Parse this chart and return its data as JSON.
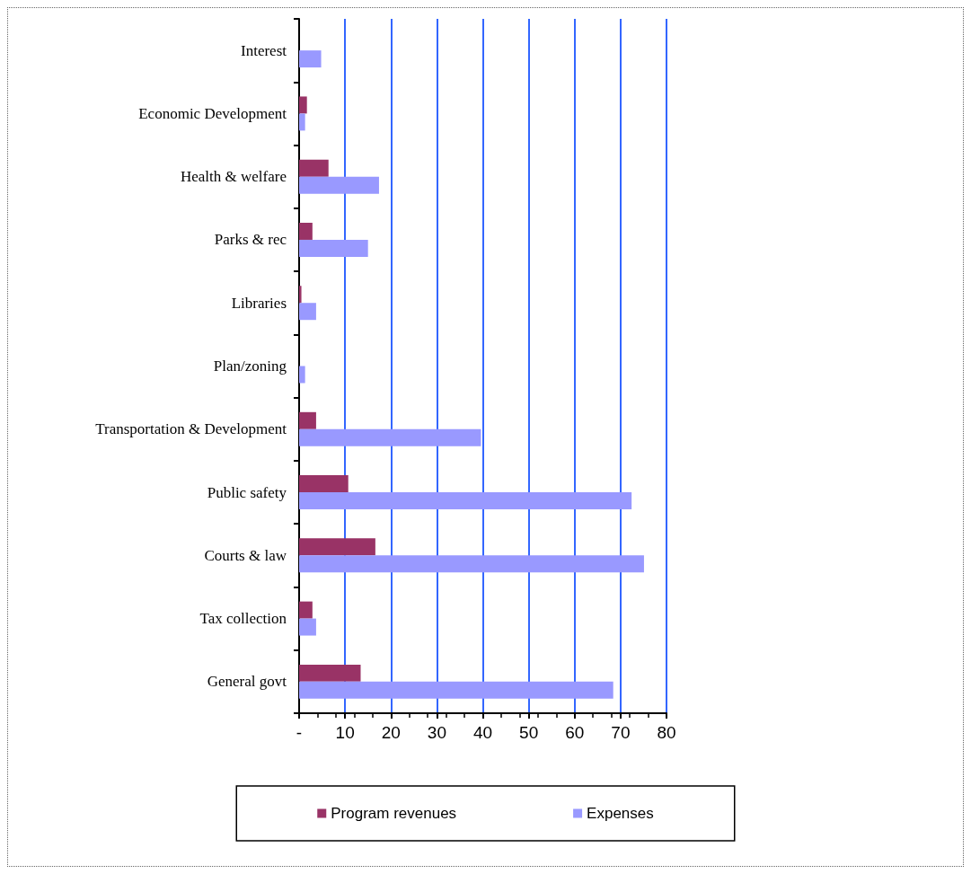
{
  "chart_data": {
    "type": "bar",
    "orientation": "horizontal",
    "categories": [
      "Interest",
      "Economic Development",
      "Health & welfare",
      "Parks & rec",
      "Libraries",
      "Plan/zoning",
      "Transportation & Development",
      "Public safety",
      "Courts & law",
      "Tax collection",
      "General govt"
    ],
    "series": [
      {
        "name": "Program revenues",
        "color": "#993366",
        "values": [
          null,
          1.7,
          6.4,
          2.9,
          0.5,
          null,
          3.7,
          10.7,
          16.6,
          2.9,
          13.4
        ]
      },
      {
        "name": "Expenses",
        "color": "#9999ff",
        "values": [
          4.8,
          1.3,
          17.4,
          15.0,
          3.7,
          1.3,
          39.6,
          72.4,
          75.1,
          3.7,
          68.4
        ]
      }
    ],
    "xlim": [
      0,
      80
    ],
    "xticks": [
      {
        "value": 0,
        "label": "-"
      },
      10,
      20,
      30,
      40,
      50,
      60,
      70,
      80
    ],
    "grid": "x",
    "legend": "bottom"
  }
}
